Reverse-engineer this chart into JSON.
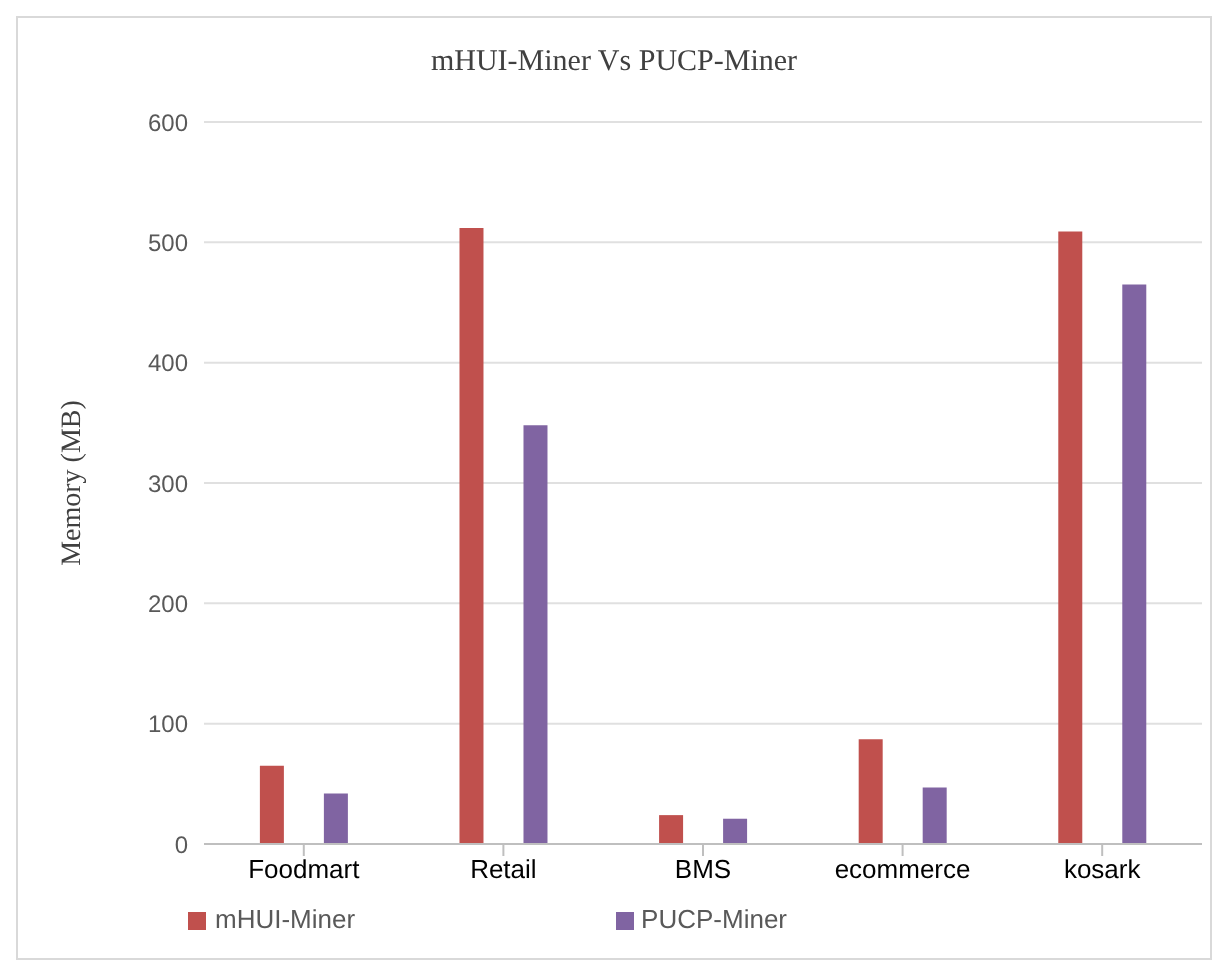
{
  "chart_data": {
    "type": "bar",
    "title": "mHUI-Miner Vs PUCP-Miner",
    "ylabel": "Memory (MB)",
    "categories": [
      "Foodmart",
      "Retail",
      "BMS",
      "ecommerce",
      "kosark"
    ],
    "series": [
      {
        "name": "mHUI-Miner",
        "color": "#c0504d",
        "values": [
          65,
          512,
          24,
          87,
          509
        ]
      },
      {
        "name": "PUCP-Miner",
        "color": "#8064a2",
        "values": [
          42,
          348,
          21,
          47,
          465
        ]
      }
    ],
    "ylim": [
      0,
      600
    ],
    "yticks": [
      0,
      100,
      200,
      300,
      400,
      500,
      600
    ],
    "grid": "y",
    "legend": "bottom"
  }
}
